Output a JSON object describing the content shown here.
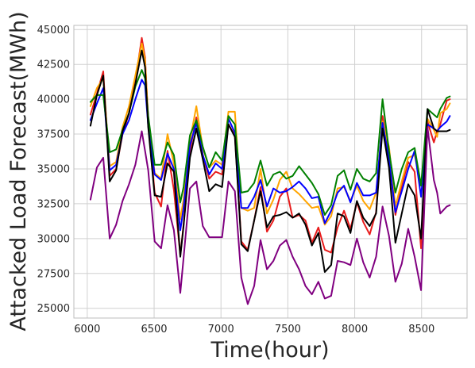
{
  "chart_data": {
    "type": "line",
    "title": "",
    "xlabel": "Time(hour)",
    "ylabel": "Attacked Load Forecast(MWh)",
    "xlim": [
      5900,
      8840
    ],
    "ylim": [
      24300,
      45300
    ],
    "grid": true,
    "x_ticks": [
      6000,
      6500,
      7000,
      7500,
      8000,
      8500
    ],
    "x_tick_labels": [
      "6000",
      "6500",
      "7000",
      "7500",
      "8000",
      "8500"
    ],
    "y_ticks": [
      25000,
      27500,
      30000,
      32500,
      35000,
      37500,
      40000,
      42500,
      45000
    ],
    "y_tick_labels": [
      "25000",
      "27500",
      "30000",
      "32500",
      "35000",
      "37500",
      "40000",
      "42500",
      "45000"
    ],
    "x": [
      6024,
      6072,
      6120,
      6168,
      6216,
      6264,
      6312,
      6360,
      6408,
      6432,
      6456,
      6504,
      6552,
      6600,
      6648,
      6696,
      6720,
      6768,
      6816,
      6864,
      6912,
      6960,
      7008,
      7056,
      7104,
      7152,
      7200,
      7248,
      7296,
      7344,
      7392,
      7440,
      7488,
      7536,
      7584,
      7632,
      7680,
      7728,
      7776,
      7824,
      7872,
      7920,
      7968,
      8016,
      8064,
      8112,
      8160,
      8208,
      8256,
      8304,
      8352,
      8400,
      8448,
      8496,
      8544,
      8592,
      8616,
      8640,
      8688,
      8712
    ],
    "series": [
      {
        "color": "#e81c1c",
        "values": [
          38900,
          40400,
          42000,
          34500,
          35000,
          37500,
          39000,
          41300,
          44400,
          43000,
          38500,
          33300,
          32300,
          36300,
          33500,
          28800,
          31000,
          36300,
          38700,
          36000,
          34300,
          34800,
          34600,
          38200,
          37400,
          29800,
          29200,
          31300,
          33700,
          30500,
          31300,
          33000,
          33600,
          31500,
          31700,
          31300,
          29700,
          30800,
          29200,
          29000,
          30800,
          32000,
          30700,
          32600,
          31200,
          30300,
          31900,
          38800,
          36000,
          31700,
          33800,
          35500,
          34800,
          29300,
          38400,
          36900,
          37700,
          38200,
          39900,
          40000
        ]
      },
      {
        "color": "#ffa500",
        "values": [
          39500,
          40800,
          41500,
          35200,
          35500,
          38000,
          39500,
          41700,
          44000,
          42800,
          38700,
          34700,
          34300,
          37500,
          35400,
          31400,
          32800,
          37000,
          39500,
          36500,
          35100,
          35600,
          35300,
          39100,
          39100,
          32200,
          32000,
          32200,
          35000,
          31800,
          32800,
          34200,
          34800,
          33600,
          33200,
          32700,
          32200,
          32300,
          31000,
          31600,
          33600,
          33700,
          32700,
          33800,
          32700,
          32100,
          33300,
          38400,
          36600,
          32300,
          34100,
          35800,
          36000,
          33800,
          38600,
          37800,
          37300,
          39000,
          39300,
          39700
        ]
      },
      {
        "color": "#0000ff",
        "values": [
          38500,
          39700,
          40800,
          34900,
          35300,
          37500,
          38500,
          40000,
          41400,
          41000,
          38100,
          34600,
          34200,
          36100,
          35000,
          30600,
          32200,
          36700,
          38300,
          36000,
          34600,
          35400,
          35000,
          38600,
          37600,
          32200,
          32200,
          33000,
          34200,
          32300,
          33600,
          33300,
          33400,
          33700,
          34100,
          33600,
          32900,
          33000,
          31100,
          32000,
          33300,
          33800,
          32600,
          34000,
          33100,
          33100,
          33300,
          38300,
          35700,
          31900,
          33400,
          35000,
          36300,
          33000,
          38200,
          37900,
          37700,
          38000,
          38400,
          38800
        ]
      },
      {
        "color": "#008000",
        "values": [
          39800,
          40300,
          40300,
          36200,
          36400,
          37800,
          39000,
          40900,
          42100,
          41500,
          38800,
          35300,
          35300,
          36900,
          36000,
          32600,
          33700,
          37400,
          38500,
          36600,
          35100,
          36200,
          35600,
          38800,
          38200,
          33300,
          33400,
          34000,
          35600,
          33800,
          34600,
          34800,
          34300,
          34500,
          35200,
          34600,
          34000,
          33200,
          31700,
          32400,
          34500,
          34900,
          33500,
          35000,
          34300,
          34100,
          34700,
          40000,
          36300,
          33300,
          35000,
          36200,
          36500,
          33800,
          39300,
          38900,
          38700,
          39300,
          40100,
          40200
        ]
      },
      {
        "color": "#000000",
        "values": [
          38100,
          40300,
          41700,
          34100,
          34900,
          37700,
          39000,
          41100,
          43500,
          42300,
          38000,
          33100,
          33000,
          35400,
          34800,
          28700,
          30900,
          35800,
          37900,
          35700,
          33400,
          33900,
          33700,
          38200,
          37300,
          29600,
          29100,
          31300,
          33400,
          30800,
          31600,
          31700,
          31900,
          31500,
          31800,
          31000,
          29500,
          30400,
          27600,
          28100,
          31800,
          31600,
          30400,
          32700,
          31500,
          30900,
          31800,
          37900,
          35100,
          29700,
          31800,
          33900,
          33100,
          30000,
          39300,
          37900,
          37700,
          37700,
          37700,
          37800
        ]
      },
      {
        "color": "#800080",
        "values": [
          32800,
          35100,
          35800,
          30000,
          31000,
          32700,
          33900,
          35300,
          37700,
          36300,
          34900,
          29800,
          29300,
          32400,
          30600,
          26100,
          28600,
          33600,
          34100,
          30900,
          30100,
          30100,
          30100,
          34100,
          33400,
          27200,
          25300,
          26600,
          29900,
          27800,
          28400,
          29500,
          29900,
          28700,
          27800,
          26600,
          26000,
          26900,
          25700,
          25900,
          28400,
          28300,
          28100,
          30000,
          28300,
          27200,
          28700,
          32300,
          30200,
          26900,
          28200,
          30700,
          28700,
          26300,
          38000,
          34200,
          33300,
          31800,
          32300,
          32400
        ]
      }
    ]
  }
}
